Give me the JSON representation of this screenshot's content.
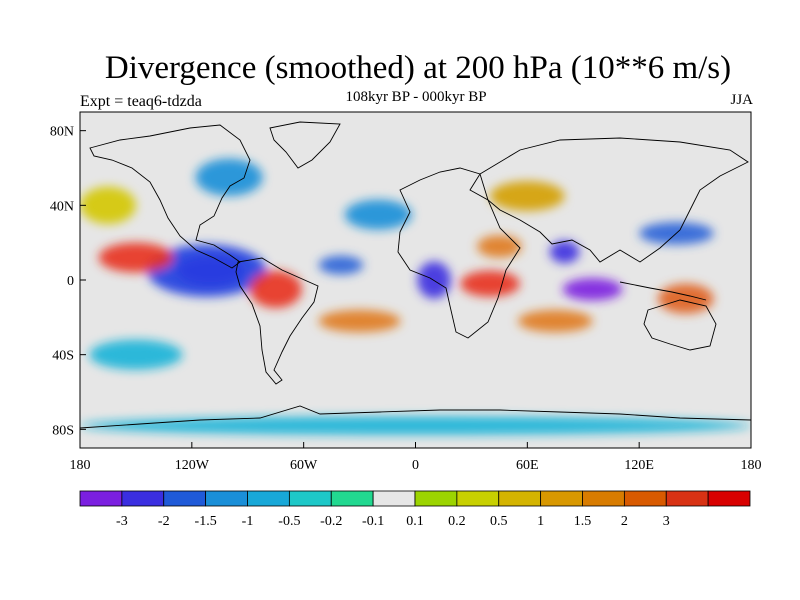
{
  "title": "Divergence (smoothed) at 200 hPa (10**6 m/s)",
  "subtitle": "108kyr BP - 000kyr BP",
  "experiment_label": "Expt = teaq6-tdzda",
  "season": "JJA",
  "map": {
    "projection": "cylindrical-equidistant",
    "lon_range": [
      -180,
      180
    ],
    "lat_range": [
      -90,
      90
    ],
    "lat_ticks": [
      {
        "value": 80,
        "label": "80N"
      },
      {
        "value": 40,
        "label": "40N"
      },
      {
        "value": 0,
        "label": "0"
      },
      {
        "value": -40,
        "label": "40S"
      },
      {
        "value": -80,
        "label": "80S"
      }
    ],
    "lon_ticks": [
      {
        "value": -180,
        "label": "180"
      },
      {
        "value": -120,
        "label": "120W"
      },
      {
        "value": -60,
        "label": "60W"
      },
      {
        "value": 0,
        "label": "0"
      },
      {
        "value": 60,
        "label": "60E"
      },
      {
        "value": 120,
        "label": "120E"
      },
      {
        "value": 180,
        "label": "180"
      }
    ],
    "background_color": "#e6e6e6",
    "features": [
      {
        "name": "blob-east-pacific-convergence",
        "lon": -110,
        "lat": 5,
        "rlon": 18,
        "rlat": 8,
        "color": "#7b1fe0"
      },
      {
        "name": "blob-east-pacific-convergence-halo",
        "lon": -112,
        "lat": 5,
        "rlon": 32,
        "rlat": 14,
        "color": "#1f3fe0"
      },
      {
        "name": "blob-central-pacific-divergence",
        "lon": -150,
        "lat": 12,
        "rlon": 20,
        "rlat": 8,
        "color": "#e8321e"
      },
      {
        "name": "blob-south-america-divergence",
        "lon": -75,
        "lat": -5,
        "rlon": 14,
        "rlat": 10,
        "color": "#e8321e"
      },
      {
        "name": "blob-africa-divergence",
        "lon": 40,
        "lat": -2,
        "rlon": 16,
        "rlat": 7,
        "color": "#e8321e"
      },
      {
        "name": "blob-indian-convergence",
        "lon": 95,
        "lat": -5,
        "rlon": 16,
        "rlat": 6,
        "color": "#7b1fe0"
      },
      {
        "name": "blob-india-convergence",
        "lon": 80,
        "lat": 15,
        "rlon": 8,
        "rlat": 6,
        "color": "#3a2ee0"
      },
      {
        "name": "blob-west-pacific-divergence",
        "lon": 145,
        "lat": -10,
        "rlon": 15,
        "rlat": 8,
        "color": "#e0601e"
      },
      {
        "name": "blob-south-atlantic-divergence",
        "lon": -30,
        "lat": -22,
        "rlon": 22,
        "rlat": 6,
        "color": "#e07a1e"
      },
      {
        "name": "blob-south-indian-divergence",
        "lon": 75,
        "lat": -22,
        "rlon": 20,
        "rlat": 6,
        "color": "#e07a1e"
      },
      {
        "name": "blob-africa-convergence",
        "lon": 10,
        "lat": 0,
        "rlon": 9,
        "rlat": 10,
        "color": "#3a2ee0"
      },
      {
        "name": "blob-atlantic-convergence",
        "lon": -40,
        "lat": 8,
        "rlon": 12,
        "rlat": 5,
        "color": "#2a62d8"
      },
      {
        "name": "blob-east-asia-convergence",
        "lon": 140,
        "lat": 25,
        "rlon": 20,
        "rlat": 6,
        "color": "#2a62d8"
      },
      {
        "name": "blob-north-america-convergence",
        "lon": -100,
        "lat": 55,
        "rlon": 18,
        "rlat": 10,
        "color": "#1a8fd8"
      },
      {
        "name": "blob-europe-convergence",
        "lon": -20,
        "lat": 35,
        "rlon": 18,
        "rlat": 8,
        "color": "#1a8fd8"
      },
      {
        "name": "blob-southern-ocean-convergence",
        "lon": -150,
        "lat": -40,
        "rlon": 25,
        "rlat": 8,
        "color": "#18b4d8"
      },
      {
        "name": "blob-north-pacific-divergence",
        "lon": -165,
        "lat": 40,
        "rlon": 15,
        "rlat": 10,
        "color": "#d4c800"
      },
      {
        "name": "blob-asia-divergence",
        "lon": 60,
        "lat": 45,
        "rlon": 20,
        "rlat": 8,
        "color": "#d4a000"
      },
      {
        "name": "blob-sahara-divergence",
        "lon": 45,
        "lat": 18,
        "rlon": 12,
        "rlat": 6,
        "color": "#e07a1e"
      },
      {
        "name": "blob-antarctic-band",
        "lon": 0,
        "lat": -78,
        "rlon": 180,
        "rlat": 5,
        "color": "#18b4d8"
      }
    ]
  },
  "colorbar": {
    "colors": [
      "#7b1fe0",
      "#3a2ee0",
      "#1f5ad8",
      "#1a8fd8",
      "#18a8d8",
      "#1ec8c8",
      "#22d890",
      "#e6e6e6",
      "#9cd400",
      "#c8d000",
      "#d4b400",
      "#d89800",
      "#d87c00",
      "#d85a00",
      "#d83214",
      "#d80000"
    ],
    "labels": [
      "-3",
      "-2",
      "-1.5",
      "-1",
      "-0.5",
      "-0.2",
      "-0.1",
      "0.1",
      "0.2",
      "0.5",
      "1",
      "1.5",
      "2",
      "3"
    ]
  }
}
